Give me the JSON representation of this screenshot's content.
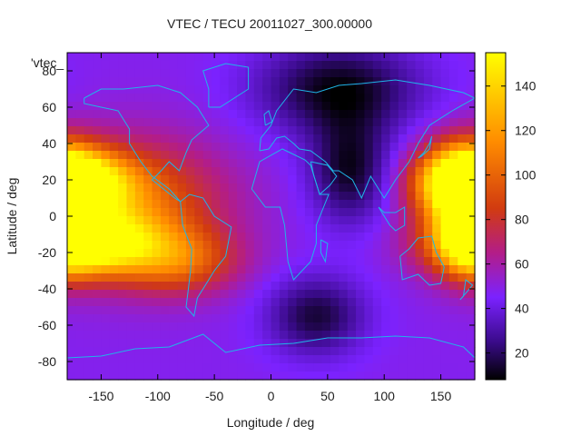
{
  "chart_data": {
    "type": "heatmap",
    "title": "VTEC / TECU 20011027_300.00000",
    "xlabel": "Longitude / deg",
    "ylabel": "Latitude / deg",
    "xlim": [
      -180,
      180
    ],
    "ylim": [
      -90,
      90
    ],
    "x_ticks": [
      "-150",
      "-100",
      "-50",
      "0",
      "50",
      "100",
      "150"
    ],
    "y_ticks": [
      "80",
      "60",
      "40",
      "20",
      "0",
      "-20",
      "-40",
      "-60",
      "-80"
    ],
    "colorbar": {
      "ticks": [
        "20",
        "40",
        "60",
        "80",
        "100",
        "120",
        "140"
      ],
      "range": [
        8,
        155
      ]
    },
    "legend_entry": "'vtec_",
    "colormap_stops": [
      {
        "value": 8,
        "color": "#000000"
      },
      {
        "value": 25,
        "color": "#3a0b8a"
      },
      {
        "value": 45,
        "color": "#7b22ff"
      },
      {
        "value": 65,
        "color": "#b31d88"
      },
      {
        "value": 85,
        "color": "#d13b10"
      },
      {
        "value": 115,
        "color": "#ff8c00"
      },
      {
        "value": 155,
        "color": "#ffff00"
      }
    ],
    "field_features": [
      {
        "lon": -175,
        "lat": 18,
        "value": 150,
        "spread_lon": 35,
        "spread_lat": 12
      },
      {
        "lon": -160,
        "lat": -15,
        "value": 150,
        "spread_lon": 40,
        "spread_lat": 12
      },
      {
        "lon": -120,
        "lat": 5,
        "value": 100,
        "spread_lon": 55,
        "spread_lat": 25
      },
      {
        "lon": -80,
        "lat": -25,
        "value": 90,
        "spread_lon": 35,
        "spread_lat": 12
      },
      {
        "lon": 170,
        "lat": 20,
        "value": 135,
        "spread_lon": 25,
        "spread_lat": 15
      },
      {
        "lon": 175,
        "lat": -10,
        "value": 120,
        "spread_lon": 20,
        "spread_lat": 15
      },
      {
        "lon": 60,
        "lat": 70,
        "value": 10,
        "spread_lon": 50,
        "spread_lat": 18
      },
      {
        "lon": 70,
        "lat": 25,
        "value": 12,
        "spread_lon": 25,
        "spread_lat": 20
      },
      {
        "lon": 40,
        "lat": -55,
        "value": 15,
        "spread_lon": 30,
        "spread_lat": 15
      }
    ],
    "coastlines": [
      {
        "name": "north-america",
        "points": [
          [
            -165,
            65
          ],
          [
            -150,
            70
          ],
          [
            -130,
            70
          ],
          [
            -100,
            72
          ],
          [
            -80,
            68
          ],
          [
            -65,
            60
          ],
          [
            -55,
            50
          ],
          [
            -70,
            42
          ],
          [
            -75,
            35
          ],
          [
            -81,
            25
          ],
          [
            -90,
            30
          ],
          [
            -97,
            25
          ],
          [
            -105,
            20
          ],
          [
            -95,
            15
          ],
          [
            -85,
            10
          ],
          [
            -80,
            8
          ],
          [
            -90,
            15
          ],
          [
            -105,
            22
          ],
          [
            -115,
            30
          ],
          [
            -125,
            40
          ],
          [
            -125,
            48
          ],
          [
            -135,
            58
          ],
          [
            -150,
            60
          ],
          [
            -165,
            62
          ],
          [
            -165,
            65
          ]
        ]
      },
      {
        "name": "south-america",
        "points": [
          [
            -80,
            8
          ],
          [
            -72,
            12
          ],
          [
            -60,
            10
          ],
          [
            -50,
            0
          ],
          [
            -35,
            -6
          ],
          [
            -40,
            -22
          ],
          [
            -50,
            -30
          ],
          [
            -58,
            -38
          ],
          [
            -65,
            -45
          ],
          [
            -68,
            -55
          ],
          [
            -75,
            -50
          ],
          [
            -73,
            -40
          ],
          [
            -71,
            -30
          ],
          [
            -70,
            -18
          ],
          [
            -78,
            -5
          ],
          [
            -80,
            8
          ]
        ]
      },
      {
        "name": "greenland",
        "points": [
          [
            -55,
            60
          ],
          [
            -45,
            60
          ],
          [
            -20,
            70
          ],
          [
            -20,
            82
          ],
          [
            -40,
            84
          ],
          [
            -60,
            80
          ],
          [
            -55,
            70
          ],
          [
            -55,
            60
          ]
        ]
      },
      {
        "name": "africa",
        "points": [
          [
            -17,
            15
          ],
          [
            -10,
            30
          ],
          [
            10,
            37
          ],
          [
            30,
            31
          ],
          [
            35,
            28
          ],
          [
            43,
            12
          ],
          [
            51,
            12
          ],
          [
            40,
            -5
          ],
          [
            40,
            -15
          ],
          [
            35,
            -25
          ],
          [
            20,
            -35
          ],
          [
            15,
            -25
          ],
          [
            12,
            -5
          ],
          [
            8,
            5
          ],
          [
            -5,
            5
          ],
          [
            -17,
            15
          ]
        ]
      },
      {
        "name": "europe-asia",
        "points": [
          [
            -10,
            36
          ],
          [
            -9,
            43
          ],
          [
            0,
            50
          ],
          [
            5,
            58
          ],
          [
            20,
            70
          ],
          [
            40,
            68
          ],
          [
            60,
            72
          ],
          [
            80,
            73
          ],
          [
            110,
            75
          ],
          [
            140,
            72
          ],
          [
            170,
            68
          ],
          [
            180,
            65
          ],
          [
            160,
            58
          ],
          [
            140,
            50
          ],
          [
            130,
            40
          ],
          [
            122,
            30
          ],
          [
            110,
            20
          ],
          [
            100,
            10
          ],
          [
            95,
            15
          ],
          [
            88,
            22
          ],
          [
            80,
            10
          ],
          [
            72,
            20
          ],
          [
            60,
            25
          ],
          [
            55,
            25
          ],
          [
            48,
            30
          ],
          [
            35,
            36
          ],
          [
            25,
            37
          ],
          [
            20,
            40
          ],
          [
            12,
            44
          ],
          [
            5,
            43
          ],
          [
            -2,
            37
          ],
          [
            -10,
            36
          ]
        ]
      },
      {
        "name": "arabia",
        "points": [
          [
            35,
            30
          ],
          [
            38,
            22
          ],
          [
            43,
            12
          ],
          [
            52,
            17
          ],
          [
            58,
            22
          ],
          [
            50,
            28
          ],
          [
            35,
            30
          ]
        ]
      },
      {
        "name": "australia",
        "points": [
          [
            114,
            -22
          ],
          [
            122,
            -18
          ],
          [
            130,
            -12
          ],
          [
            142,
            -11
          ],
          [
            146,
            -20
          ],
          [
            153,
            -28
          ],
          [
            150,
            -37
          ],
          [
            140,
            -38
          ],
          [
            130,
            -32
          ],
          [
            116,
            -35
          ],
          [
            114,
            -22
          ]
        ]
      },
      {
        "name": "antarctica",
        "points": [
          [
            -180,
            -78
          ],
          [
            -150,
            -77
          ],
          [
            -120,
            -73
          ],
          [
            -90,
            -72
          ],
          [
            -60,
            -65
          ],
          [
            -40,
            -75
          ],
          [
            -10,
            -71
          ],
          [
            20,
            -70
          ],
          [
            50,
            -67
          ],
          [
            80,
            -67
          ],
          [
            110,
            -66
          ],
          [
            140,
            -67
          ],
          [
            170,
            -72
          ],
          [
            180,
            -78
          ]
        ]
      },
      {
        "name": "borneo-sumatra",
        "points": [
          [
            95,
            5
          ],
          [
            105,
            -5
          ],
          [
            110,
            -8
          ],
          [
            118,
            -5
          ],
          [
            118,
            5
          ],
          [
            110,
            2
          ],
          [
            100,
            2
          ],
          [
            95,
            5
          ]
        ]
      },
      {
        "name": "madagascar",
        "points": [
          [
            44,
            -13
          ],
          [
            50,
            -15
          ],
          [
            48,
            -25
          ],
          [
            44,
            -20
          ],
          [
            44,
            -13
          ]
        ]
      },
      {
        "name": "japan",
        "points": [
          [
            130,
            32
          ],
          [
            135,
            35
          ],
          [
            140,
            40
          ],
          [
            142,
            44
          ],
          [
            140,
            37
          ],
          [
            133,
            33
          ],
          [
            130,
            32
          ]
        ]
      },
      {
        "name": "new-zealand",
        "points": [
          [
            167,
            -46
          ],
          [
            174,
            -41
          ],
          [
            178,
            -38
          ],
          [
            172,
            -35
          ],
          [
            170,
            -44
          ],
          [
            167,
            -46
          ]
        ]
      },
      {
        "name": "uk",
        "points": [
          [
            -5,
            50
          ],
          [
            1,
            52
          ],
          [
            -2,
            58
          ],
          [
            -6,
            56
          ],
          [
            -5,
            50
          ]
        ]
      }
    ]
  }
}
